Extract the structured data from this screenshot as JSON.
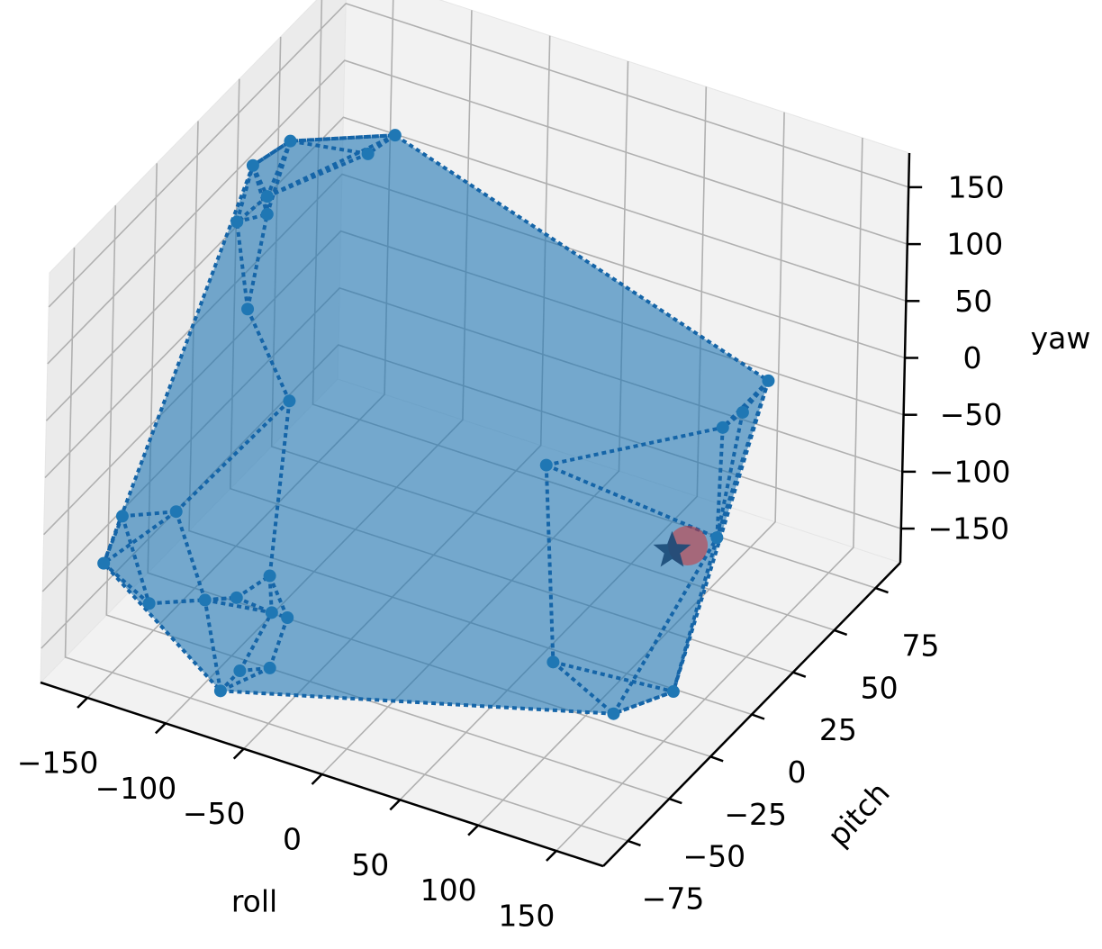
{
  "chart_data": {
    "type": "scatter3d",
    "xlabel": "roll",
    "ylabel": "pitch",
    "zlabel": "yaw",
    "xlim": [
      -180,
      180
    ],
    "ylim": [
      -90,
      90
    ],
    "zlim": [
      -180,
      180
    ],
    "xticks": [
      {
        "value": -150,
        "label": "−150"
      },
      {
        "value": -100,
        "label": "−100"
      },
      {
        "value": -50,
        "label": "−50"
      },
      0,
      50,
      100,
      150
    ],
    "yticks": [
      {
        "value": -75,
        "label": "−75"
      },
      {
        "value": -50,
        "label": "−50"
      },
      {
        "value": -25,
        "label": "−25"
      },
      0,
      25,
      50,
      75
    ],
    "zticks": [
      {
        "value": -150,
        "label": "−150"
      },
      {
        "value": -100,
        "label": "−100"
      },
      {
        "value": -50,
        "label": "−50"
      },
      0,
      50,
      100,
      150
    ],
    "grid": true,
    "hull": true,
    "series": [
      {
        "color": "#1f77b4",
        "marker": "o",
        "x": [
          -110,
          -158,
          -163,
          -135,
          -117,
          -144,
          -109,
          -155,
          149,
          170,
          176,
          46,
          -158,
          -170,
          -160,
          179,
          -149,
          -132,
          -112,
          -82,
          -71,
          -61,
          -72,
          -53,
          -84,
          90,
          176,
          166,
          -127
        ],
        "y": [
          54,
          36,
          18,
          0,
          -36,
          9,
          -36,
          36,
          36,
          0,
          -18,
          0,
          -63,
          -18,
          -72,
          -23,
          -54,
          -36,
          -36,
          -45,
          -54,
          -54,
          -72,
          -72,
          -72,
          -36,
          -45,
          -72,
          54
        ],
        "z": [
          119,
          119,
          122,
          134,
          173,
          101,
          100,
          -108,
          46,
          81,
          97,
          -21,
          -64,
          -132,
          -93,
          9,
          -150,
          -166,
          -155,
          -109,
          -123,
          -123,
          -148,
          -137,
          -171,
          -121,
          -95,
          -79,
          95
        ]
      },
      {
        "color": "#d62728",
        "marker": "o",
        "x": [
          174
        ],
        "y": [
          -36
        ],
        "z": [
          19
        ]
      },
      {
        "color": "#1a4a78",
        "marker": "*",
        "x": [
          164
        ],
        "y": [
          -36
        ],
        "z": [
          10
        ]
      }
    ]
  }
}
